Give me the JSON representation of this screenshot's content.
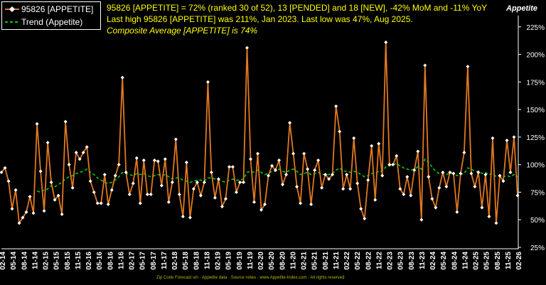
{
  "header": {
    "line1": "95826 [APPETITE] = 72% (ranked 30 of 52), 13 [PENDED] and 18 [NEW], -42% MoM and -11% YoY",
    "line2": "Last high 95826 [APPETITE] was 211%, Jan 2023. Last low was 47%, Aug 2025.",
    "line3": "Composite Average [APPETITE] is 74%"
  },
  "brand": "Appetite",
  "footer_note": "Zip Code Forecast sm · Appetite data · Source notes · www.Appetite-Index.com · All rights reserved",
  "colors": {
    "series": "#e07820",
    "trend": "#00cc00",
    "marker": "#ffffff",
    "headline": "#ffff00",
    "axis": "#ffffff"
  },
  "chart_data": {
    "type": "line",
    "title": "",
    "xlabel": "",
    "ylabel": "",
    "ylim": [
      25,
      230
    ],
    "y_ticks": [
      25,
      50,
      75,
      100,
      125,
      150,
      175,
      200,
      225
    ],
    "y_tick_labels": [
      "25%",
      "50%",
      "75%",
      "100%",
      "125%",
      "150%",
      "175%",
      "200%",
      "225%"
    ],
    "x_tick_labels": [
      "02-14",
      "05-14",
      "08-14",
      "11-14",
      "02-15",
      "05-15",
      "08-15",
      "11-15",
      "02-16",
      "05-16",
      "08-16",
      "11-16",
      "02-17",
      "05-17",
      "08-17",
      "11-17",
      "02-18",
      "05-18",
      "08-18",
      "11-18",
      "02-19",
      "05-19",
      "08-19",
      "11-19",
      "02-20",
      "05-20",
      "08-20",
      "11-20",
      "02-21",
      "05-21",
      "08-21",
      "11-21",
      "02-22",
      "05-22",
      "08-22",
      "11-22",
      "02-23",
      "05-23",
      "08-23",
      "11-23",
      "02-24",
      "05-24",
      "08-24",
      "11-24",
      "02-25",
      "05-25",
      "08-25",
      "11-25",
      "02-26"
    ],
    "legend_position": "top-left",
    "series": [
      {
        "name": "95826 [APPETITE]",
        "values": [
          93,
          97,
          85,
          60,
          77,
          47,
          52,
          57,
          71,
          56,
          137,
          94,
          58,
          120,
          84,
          68,
          72,
          55,
          139,
          100,
          79,
          111,
          105,
          111,
          116,
          85,
          75,
          65,
          65,
          91,
          64,
          77,
          90,
          100,
          179,
          93,
          73,
          83,
          106,
          65,
          104,
          73,
          73,
          104,
          103,
          81,
          105,
          66,
          84,
          123,
          73,
          53,
          102,
          52,
          78,
          84,
          72,
          84,
          175,
          93,
          70,
          87,
          62,
          69,
          98,
          98,
          75,
          84,
          84,
          206,
          105,
          66,
          110,
          59,
          64,
          90,
          99,
          95,
          104,
          82,
          91,
          138,
          110,
          80,
          65,
          110,
          96,
          64,
          95,
          104,
          79,
          91,
          87,
          91,
          153,
          130,
          78,
          91,
          78,
          124,
          83,
          60,
          51,
          86,
          117,
          68,
          119,
          90,
          211,
          100,
          100,
          108,
          78,
          73,
          89,
          72,
          95,
          112,
          50,
          190,
          89,
          69,
          61,
          79,
          93,
          80,
          93,
          92,
          57,
          92,
          111,
          189,
          92,
          80,
          93,
          61,
          91,
          53,
          124,
          47,
          90,
          85,
          122,
          93,
          125,
          72
        ]
      },
      {
        "name": "Trend (Appetite)",
        "values": [
          null,
          null,
          null,
          null,
          null,
          null,
          null,
          null,
          null,
          null,
          76,
          75,
          77,
          78,
          81,
          80,
          82,
          84,
          87,
          89,
          90,
          92,
          93,
          94,
          96,
          93,
          91,
          88,
          86,
          84,
          83,
          84,
          86,
          89,
          93,
          92,
          91,
          90,
          92,
          91,
          92,
          90,
          89,
          90,
          91,
          90,
          91,
          89,
          87,
          88,
          88,
          86,
          85,
          84,
          85,
          86,
          86,
          85,
          88,
          88,
          87,
          86,
          85,
          84,
          86,
          87,
          86,
          86,
          87,
          93,
          94,
          93,
          95,
          93,
          91,
          92,
          94,
          94,
          96,
          94,
          93,
          95,
          96,
          94,
          91,
          92,
          93,
          91,
          92,
          93,
          91,
          91,
          91,
          92,
          95,
          97,
          94,
          94,
          93,
          94,
          93,
          91,
          89,
          90,
          92,
          92,
          94,
          94,
          98,
          99,
          100,
          101,
          99,
          97,
          96,
          95,
          96,
          98,
          96,
          105,
          102,
          98,
          94,
          92,
          92,
          91,
          92,
          92,
          90,
          91,
          92,
          97,
          96,
          94,
          94,
          92,
          93,
          91,
          92,
          89,
          90,
          89,
          90,
          89,
          91,
          89
        ]
      }
    ]
  }
}
